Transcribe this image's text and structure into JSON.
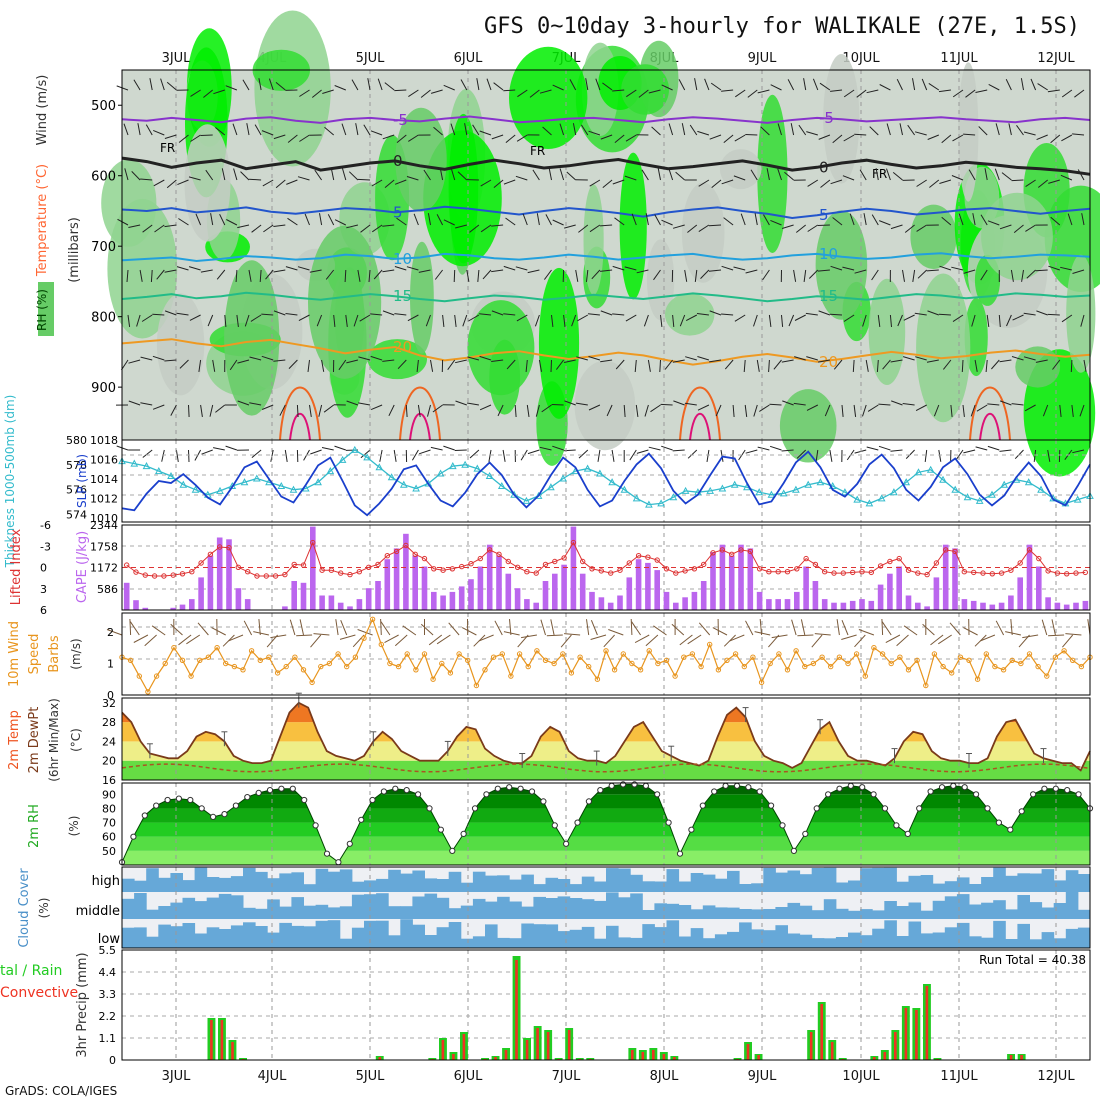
{
  "title": "GFS 0~10day 3-hourly for WALIKALE (27E, 1.5S)",
  "footer": "GrADS: COLA/IGES",
  "days": [
    "3JUL",
    "4JUL",
    "5JUL",
    "6JUL",
    "7JUL",
    "8JUL",
    "9JUL",
    "10JUL",
    "11JUL",
    "12JUL"
  ],
  "chart_data": [
    {
      "type": "heatmap",
      "panel": "upper-air",
      "ylabel_parts": [
        {
          "text": "RH (%)",
          "color": "#22aa22"
        },
        {
          "text": "Temperature",
          "color": "#ff6633"
        },
        {
          "text": " (°C)",
          "color": "#cc0000"
        },
        {
          "text": "Wind",
          "color": "#333333"
        },
        {
          "text": " (m/s)",
          "color": "#333333"
        }
      ],
      "yunit": "(millibars)",
      "yticks": [
        500,
        600,
        700,
        800,
        900
      ],
      "ylim": [
        450,
        975
      ],
      "freezing_label": "FR",
      "isotherms": [
        {
          "label": "-5",
          "color": "#8833cc",
          "p": [
            520,
            522,
            518,
            521,
            524,
            519,
            517,
            522,
            525,
            520,
            518,
            521,
            523,
            519,
            516,
            520,
            524,
            522,
            519,
            518,
            521,
            524,
            520,
            517,
            519,
            522,
            525,
            521,
            518,
            520,
            523,
            521,
            519,
            517,
            520,
            522,
            524,
            520,
            518,
            521
          ]
        },
        {
          "label": "0",
          "color": "#222222",
          "p": [
            575,
            580,
            588,
            582,
            578,
            590,
            585,
            580,
            592,
            587,
            582,
            579,
            586,
            591,
            584,
            578,
            583,
            589,
            586,
            581,
            577,
            584,
            590,
            587,
            583,
            579,
            585,
            592,
            588,
            582,
            578,
            584,
            589,
            586,
            581,
            584,
            588,
            590,
            593,
            598
          ]
        },
        {
          "label": "5",
          "color": "#2255cc",
          "p": [
            648,
            650,
            646,
            652,
            649,
            645,
            651,
            654,
            650,
            646,
            648,
            652,
            649,
            644,
            647,
            651,
            655,
            650,
            646,
            649,
            653,
            658,
            652,
            648,
            645,
            650,
            654,
            660,
            656,
            651,
            647,
            650,
            655,
            652,
            648,
            646,
            650,
            654,
            650,
            647
          ]
        },
        {
          "label": "10",
          "color": "#22a0dd",
          "p": [
            720,
            718,
            716,
            721,
            718,
            714,
            716,
            719,
            717,
            712,
            714,
            718,
            716,
            711,
            713,
            717,
            719,
            716,
            712,
            715,
            719,
            716,
            713,
            711,
            716,
            719,
            717,
            713,
            711,
            715,
            718,
            716,
            712,
            710,
            714,
            717,
            715,
            712,
            713,
            715
          ]
        },
        {
          "label": "15",
          "color": "#22bb88",
          "p": [
            775,
            772,
            768,
            774,
            771,
            766,
            769,
            773,
            776,
            772,
            768,
            771,
            775,
            778,
            774,
            770,
            772,
            776,
            773,
            769,
            772,
            775,
            771,
            767,
            770,
            774,
            778,
            775,
            771,
            773,
            776,
            772,
            768,
            770,
            774,
            771,
            767,
            769,
            772,
            770
          ]
        },
        {
          "label": "20",
          "color": "#ee9922",
          "p": [
            838,
            835,
            832,
            838,
            842,
            836,
            833,
            839,
            845,
            852,
            847,
            843,
            855,
            862,
            858,
            852,
            849,
            855,
            860,
            856,
            851,
            855,
            862,
            868,
            863,
            857,
            853,
            858,
            864,
            860,
            855,
            850,
            854,
            859,
            856,
            851,
            848,
            853,
            857,
            854
          ]
        }
      ]
    },
    {
      "type": "line",
      "panel": "thickness-slp",
      "ylabel_left": "Thickness 1000-500mb (dm)",
      "ylabel_right": "SLP (mb)",
      "left_ticks": [
        574,
        576,
        578,
        580
      ],
      "left_ylim": [
        573.4,
        580.0
      ],
      "right_ticks": [
        1010,
        1012,
        1014,
        1016,
        1018
      ],
      "right_ylim": [
        1009.6,
        1018.0
      ],
      "series": [
        {
          "name": "SLP",
          "axis": "right",
          "color": "#1a3fcc",
          "values": [
            1011,
            1010.8,
            1012.5,
            1013.8,
            1013.6,
            1014.5,
            1013.4,
            1012.1,
            1011.4,
            1013.2,
            1015.2,
            1015.8,
            1014,
            1012.2,
            1011.6,
            1013.4,
            1015.4,
            1016.2,
            1013.8,
            1011.3,
            1010.3,
            1011.5,
            1013,
            1015,
            1015.4,
            1013.5,
            1011.8,
            1011.2,
            1012.6,
            1014.5,
            1015.7,
            1014.4,
            1012.4,
            1011.1,
            1012.3,
            1014.4,
            1016.2,
            1015.2,
            1012.9,
            1011.2,
            1011.8,
            1013.8,
            1015.5,
            1016.6,
            1015.1,
            1012.8,
            1011.5,
            1012.4,
            1014.4,
            1016.3,
            1016.1,
            1013.6,
            1011.4,
            1011.7,
            1013.6,
            1015.7,
            1016.8,
            1015.2,
            1012.9,
            1012.2,
            1013.5,
            1015.5,
            1016.5,
            1015.1,
            1012.9,
            1011.8,
            1013.2,
            1015.2,
            1016.1,
            1014.5,
            1012.4,
            1011.3,
            1012.3,
            1014.2,
            1015.7,
            1014.3,
            1011.9,
            1011.3,
            1013.3,
            1015.5
          ]
        },
        {
          "name": "Thickness",
          "axis": "left",
          "color": "#33bbcc",
          "values": [
            578.3,
            578.1,
            577.9,
            577.5,
            577.1,
            576.4,
            576.0,
            575.6,
            575.9,
            576.3,
            576.6,
            576.9,
            576.6,
            576.3,
            576.0,
            576.1,
            576.6,
            577.5,
            578.4,
            579.2,
            578.6,
            577.8,
            577.0,
            576.4,
            576.1,
            576.5,
            577.3,
            577.9,
            578.0,
            577.7,
            577.1,
            576.3,
            575.6,
            575.1,
            575.5,
            576.2,
            576.9,
            577.5,
            577.7,
            577.3,
            576.6,
            576.0,
            575.3,
            574.8,
            574.9,
            575.4,
            575.9,
            575.8,
            575.9,
            576.1,
            576.4,
            576.2,
            575.8,
            575.6,
            575.7,
            576.0,
            576.4,
            576.6,
            576.3,
            575.8,
            575.2,
            574.9,
            575.3,
            575.8,
            576.6,
            577.4,
            577.6,
            576.8,
            576.0,
            575.4,
            575.1,
            575.6,
            576.4,
            576.8,
            576.6,
            576.0,
            575.3,
            574.9,
            575.2,
            575.5
          ]
        }
      ]
    },
    {
      "type": "bar",
      "panel": "lifted-index-cape",
      "ylabel_left": "Lifted Index",
      "ylabel_right": "CAPE (J/kg)",
      "li_ticks": [
        -6,
        -3,
        0,
        3,
        6
      ],
      "li_ylim": [
        -6,
        6
      ],
      "cape_ticks": [
        586,
        1172,
        1758,
        2344
      ],
      "cape_ylim": [
        0,
        2344
      ],
      "cape": [
        750,
        270,
        60,
        0,
        0,
        60,
        150,
        300,
        900,
        1500,
        2000,
        1950,
        600,
        300,
        0,
        0,
        0,
        100,
        800,
        750,
        2300,
        400,
        400,
        200,
        100,
        300,
        600,
        800,
        1400,
        1700,
        2100,
        1500,
        1200,
        500,
        400,
        500,
        650,
        850,
        1200,
        1800,
        1500,
        1000,
        600,
        300,
        200,
        800,
        1000,
        1250,
        2300,
        1000,
        500,
        350,
        200,
        400,
        900,
        1400,
        1300,
        1100,
        500,
        200,
        350,
        500,
        800,
        1600,
        1800,
        1500,
        1800,
        1700,
        500,
        300,
        300,
        300,
        500,
        1200,
        800,
        300,
        200,
        200,
        250,
        300,
        250,
        700,
        1000,
        1200,
        400,
        200,
        100,
        900,
        1800,
        1700,
        300,
        250,
        200,
        150,
        200,
        400,
        900,
        1800,
        1200,
        350,
        200,
        150,
        200,
        250
      ]
    },
    {
      "type": "line",
      "panel": "wind-10m",
      "ylabel": "10m Wind Speed (m/s) & Barbs",
      "yticks": [
        0,
        1,
        2
      ],
      "ylim": [
        0,
        2.6
      ],
      "values": [
        1.2,
        1.1,
        0.6,
        0.1,
        0.6,
        1.0,
        1.5,
        1.1,
        0.6,
        1.1,
        1.2,
        1.5,
        1.0,
        0.9,
        0.8,
        1.4,
        1.1,
        1.2,
        0.7,
        0.9,
        1.2,
        0.8,
        0.4,
        0.9,
        1.0,
        1.3,
        0.9,
        1.2,
        1.8,
        2.4,
        1.6,
        1.0,
        0.9,
        1.3,
        0.8,
        1.3,
        0.5,
        1.0,
        0.7,
        1.3,
        1.1,
        0.3,
        0.8,
        1.2,
        1.3,
        0.6,
        1.3,
        0.9,
        1.4,
        1.1,
        1.0,
        1.3,
        0.7,
        1.2,
        0.9,
        0.5,
        1.4,
        0.8,
        1.3,
        1.0,
        0.8,
        1.4,
        1.0,
        1.1,
        0.6,
        1.2,
        1.3,
        0.9,
        1.6,
        0.8,
        1.1,
        1.3,
        0.9,
        1.2,
        0.4,
        1.0,
        1.3,
        0.8,
        1.4,
        0.9,
        1.0,
        1.2,
        0.9,
        1.2,
        1.0,
        1.3,
        0.6,
        1.5,
        1.3,
        1.0,
        1.2,
        0.8,
        1.1,
        0.3,
        1.3,
        0.9,
        0.7,
        1.2,
        1.1,
        0.5,
        1.3,
        0.9,
        0.8,
        1.1,
        1.0,
        1.3,
        0.9,
        0.6,
        1.2,
        1.4,
        1.1,
        0.9,
        1.2
      ]
    },
    {
      "type": "area",
      "panel": "temperature-2m",
      "ylabel": "2m Temp 2m DewPt (6hr Min/Max) (°C)",
      "yticks": [
        16,
        20,
        24,
        28,
        32
      ],
      "ylim": [
        16,
        33
      ],
      "temp": [
        30,
        28,
        24,
        21.5,
        21,
        20.5,
        20.5,
        22,
        25,
        26,
        25.5,
        24,
        21,
        20,
        19.5,
        19.5,
        20,
        25,
        30,
        32,
        31,
        26,
        22,
        21,
        20.5,
        20,
        21,
        24,
        26,
        24.5,
        22,
        21,
        20,
        20,
        20,
        22,
        25,
        27,
        26.5,
        22.5,
        21,
        20,
        19.5,
        19.5,
        21,
        25,
        27,
        26,
        22,
        20.5,
        20,
        20,
        19.5,
        21,
        24,
        27,
        28,
        25,
        22,
        21,
        20,
        19.5,
        19,
        20,
        25,
        29.5,
        31,
        29,
        24,
        21,
        20,
        19.5,
        18.5,
        19.5,
        23,
        26.5,
        28,
        24,
        21,
        20,
        20,
        19.5,
        19,
        20.5,
        24,
        26,
        25.5,
        22,
        20.5,
        20,
        20,
        19.5,
        19.5,
        20.5,
        25,
        28,
        28.5,
        25,
        21.5,
        20.5,
        20,
        19.5,
        19.5,
        18,
        22
      ]
    },
    {
      "type": "area",
      "panel": "rh-2m",
      "ylabel": "2m RH (%)",
      "yticks": [
        50,
        60,
        70,
        80,
        90
      ],
      "ylim": [
        40,
        98
      ],
      "values": [
        42,
        60,
        75,
        82,
        86,
        87,
        86,
        80,
        74,
        76,
        82,
        88,
        91,
        93,
        94,
        94,
        86,
        68,
        48,
        42,
        55,
        72,
        86,
        92,
        94,
        93,
        90,
        80,
        65,
        50,
        62,
        80,
        90,
        94,
        95,
        94,
        92,
        85,
        68,
        55,
        70,
        85,
        93,
        96,
        97,
        97,
        96,
        90,
        70,
        48,
        65,
        82,
        92,
        96,
        96,
        95,
        92,
        82,
        68,
        50,
        62,
        80,
        90,
        94,
        96,
        95,
        90,
        80,
        68,
        62,
        80,
        92,
        95,
        96,
        95,
        90,
        80,
        70,
        65,
        78,
        90,
        94,
        94,
        93,
        90,
        80
      ]
    },
    {
      "type": "heatmap",
      "panel": "cloud-cover",
      "ylabel": "Cloud Cover (%)",
      "levels": [
        "high",
        "middle",
        "low"
      ]
    },
    {
      "type": "bar",
      "panel": "precip",
      "ylabel": "3hr Precip (mm)",
      "legend_left": [
        "tal / Rain",
        "Convective"
      ],
      "yticks": [
        0,
        1.1,
        2.2,
        3.3,
        4.4,
        5.5
      ],
      "ylim": [
        0,
        5.5
      ],
      "run_total_label": "Run Total = 40.38",
      "total": [
        0,
        0,
        0,
        0,
        0,
        0,
        0,
        0,
        2.1,
        2.1,
        1.0,
        0.1,
        0,
        0,
        0,
        0,
        0,
        0,
        0,
        0,
        0,
        0,
        0,
        0,
        0.2,
        0,
        0,
        0,
        0,
        0.1,
        1.1,
        0.4,
        1.4,
        0,
        0.1,
        0.2,
        0.6,
        5.2,
        1.1,
        1.7,
        1.5,
        0.1,
        1.6,
        0.1,
        0.1,
        0,
        0,
        0,
        0.6,
        0.5,
        0.6,
        0.4,
        0.2,
        0,
        0,
        0,
        0,
        0,
        0.1,
        0.9,
        0.3,
        0,
        0,
        0,
        0,
        1.5,
        2.9,
        1.0,
        0.1,
        0,
        0,
        0.2,
        0.5,
        1.5,
        2.7,
        2.6,
        3.8,
        0.1,
        0,
        0,
        0,
        0,
        0,
        0,
        0.3,
        0.3,
        0,
        0,
        0,
        0,
        0,
        0
      ],
      "convective": [
        0,
        0,
        0,
        0,
        0,
        0,
        0,
        0,
        2.0,
        2.0,
        0.9,
        0.05,
        0,
        0,
        0,
        0,
        0,
        0,
        0,
        0,
        0,
        0,
        0,
        0,
        0.15,
        0,
        0,
        0,
        0,
        0.05,
        1.0,
        0.3,
        1.3,
        0,
        0.05,
        0.15,
        0.5,
        5.0,
        1.0,
        1.6,
        1.4,
        0.05,
        1.5,
        0.05,
        0.05,
        0,
        0,
        0,
        0.5,
        0.4,
        0.5,
        0.3,
        0.15,
        0,
        0,
        0,
        0,
        0,
        0.05,
        0.8,
        0.25,
        0,
        0,
        0,
        0,
        1.4,
        2.8,
        0.9,
        0.05,
        0,
        0,
        0.15,
        0.4,
        1.4,
        2.6,
        2.5,
        3.7,
        0.05,
        0,
        0,
        0,
        0,
        0,
        0,
        0.25,
        0.25,
        0,
        0,
        0,
        0,
        0,
        0
      ]
    }
  ]
}
